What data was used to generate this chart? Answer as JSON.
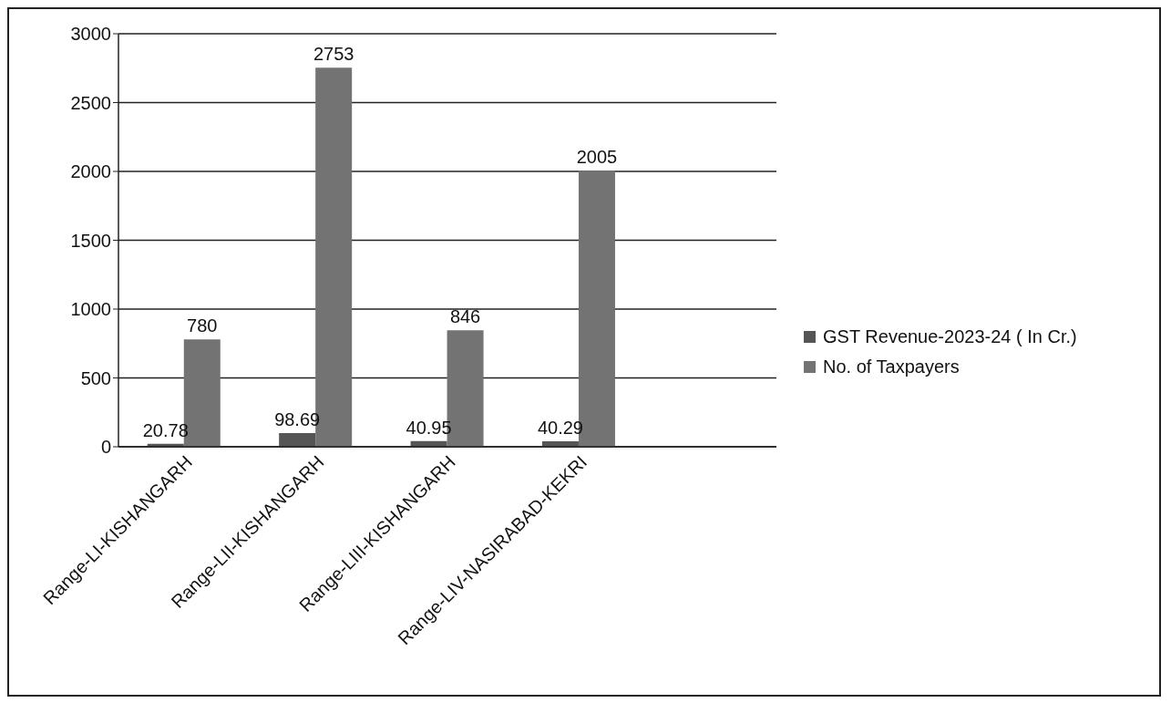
{
  "chart_data": {
    "type": "bar",
    "categories": [
      "Range-LI-KISHANGARH",
      "Range-LII-KISHANGARH",
      "Range-LIII-KISHANGARH",
      "Range-LIV-NASIRABAD-KEKRI",
      null
    ],
    "series": [
      {
        "name": "GST Revenue-2023-24 ( In Cr.)",
        "color": "#555555",
        "values": [
          20.78,
          98.69,
          40.95,
          40.29,
          null
        ]
      },
      {
        "name": "No. of Taxpayers",
        "color": "#737373",
        "values": [
          780,
          2753,
          846,
          2005,
          null
        ]
      }
    ],
    "ylim": [
      0,
      3000
    ],
    "yticks": [
      0,
      500,
      1000,
      1500,
      2000,
      2500,
      3000
    ],
    "grid": "y",
    "legend": "right",
    "data_labels": true
  }
}
